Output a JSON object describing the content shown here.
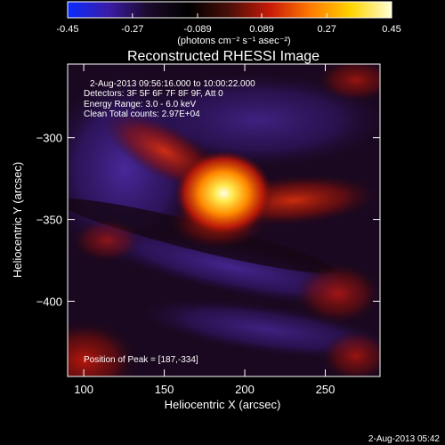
{
  "colorbar": {
    "tick_labels": [
      "-0.45",
      "-0.27",
      "-0.089",
      "0.089",
      "0.27",
      "0.45"
    ],
    "range": [
      -0.45,
      0.45
    ],
    "unit_label": "(photons cm⁻² s⁻¹ asec⁻²)",
    "colors": [
      "#0a2bff",
      "#3a1ca8",
      "#1b0a2a",
      "#000000",
      "#4b0f08",
      "#c81a08",
      "#ff7a00",
      "#ffd400",
      "#ffffd6"
    ]
  },
  "chart_data": {
    "type": "heatmap",
    "title": "Reconstructed RHESSI Image",
    "xlabel": "Heliocentric X (arcsec)",
    "ylabel": "Heliocentric Y (arcsec)",
    "xlim": [
      90,
      284
    ],
    "ylim": [
      -446,
      -255
    ],
    "x_ticks": [
      100,
      150,
      200,
      250
    ],
    "y_ticks": [
      -300,
      -350,
      -400
    ],
    "peak": {
      "x": 187,
      "y": -334,
      "value": 0.45
    },
    "annotations": [
      "2-Aug-2013 09:56:16.000 to 10:00:22.000",
      "Detectors: 3F 5F 6F 7F 8F 9F, Att 0",
      "Energy Range: 3.0 - 6.0 keV",
      "Clean    Total counts: 2.97E+04"
    ],
    "peak_label": "Position of Peak = [187,-334]",
    "plot_colors": {
      "negative_halo": "#3b1c86",
      "background": "#1a0820",
      "source_core": "#ffff9a",
      "source_mid": "#ff8a00",
      "source_edge": "#b0140a"
    }
  },
  "footer": {
    "timestamp": "2-Aug-2013 05:42"
  }
}
